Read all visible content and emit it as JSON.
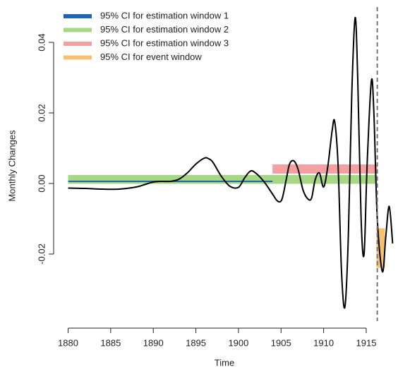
{
  "chart_data": {
    "type": "line",
    "xlabel": "Time",
    "ylabel": "Monthly Changes",
    "xlim": [
      1878.3,
      1918.4
    ],
    "ylim": [
      -0.039,
      0.05
    ],
    "xticks": [
      1880,
      1885,
      1890,
      1895,
      1900,
      1905,
      1910,
      1915
    ],
    "yticks": [
      -0.02,
      {
        "value": 0,
        "label": "0.00"
      },
      0.02,
      0.04
    ],
    "series": [
      {
        "color": "#000000",
        "x": [
          1880,
          1882,
          1884,
          1886,
          1888,
          1889,
          1890,
          1891,
          1892,
          1893,
          1894,
          1895,
          1896,
          1896.5,
          1897,
          1898,
          1899,
          1900,
          1900.7,
          1901.4,
          1902,
          1903,
          1904,
          1904.6,
          1905.1,
          1905.6,
          1906,
          1906.5,
          1907,
          1907.6,
          1908.2,
          1908.6,
          1909,
          1909.5,
          1910,
          1910.5,
          1911,
          1911.3,
          1911.7,
          1912.1,
          1912.5,
          1912.9,
          1913.3,
          1913.7,
          1914,
          1914.4,
          1914.75,
          1915.1,
          1915.6,
          1915.9,
          1916.3,
          1916.9,
          1917.3,
          1917.7,
          1918.1
        ],
        "values": [
          -0.0013,
          -0.0014,
          -0.0016,
          -0.0016,
          -0.001,
          -0.0003,
          0.0004,
          0.0006,
          0.0006,
          0.0012,
          0.003,
          0.0055,
          0.0072,
          0.007,
          0.006,
          0.002,
          -0.0008,
          -0.0011,
          0.0015,
          0.0035,
          0.003,
          0.0005,
          -0.003,
          -0.005,
          -0.0045,
          0.001,
          0.0055,
          0.0064,
          0.004,
          -0.002,
          -0.0045,
          -0.004,
          0.001,
          0.003,
          -0.001,
          0.005,
          0.015,
          0.0175,
          0.005,
          -0.025,
          -0.035,
          -0.015,
          0.025,
          0.047,
          0.03,
          -0.01,
          -0.02,
          0.005,
          0.029,
          0.02,
          -0.01,
          -0.025,
          -0.015,
          -0.0065,
          -0.017
        ]
      }
    ],
    "bands": [
      {
        "name": "95% CI for estimation window 2",
        "color": "#a6d785",
        "x": [
          1880,
          1916.3
        ],
        "low": -0.0001,
        "high": 0.0024
      },
      {
        "name": "95% CI for estimation window 1",
        "color": "#2166ac",
        "x": [
          1880,
          1904
        ],
        "low": 0.0004,
        "high": 0.0008
      },
      {
        "name": "95% CI for estimation window 3",
        "color": "#f4a0a0",
        "x": [
          1904,
          1916.3
        ],
        "low": 0.0028,
        "high": 0.0054
      },
      {
        "name": "95% CI for event window",
        "color": "#f8c171",
        "x": [
          1916.2,
          1917.2
        ],
        "low": -0.0239,
        "high": -0.0127
      }
    ],
    "legend_order": [
      1,
      0,
      2,
      3
    ],
    "vline": 1916.3,
    "vline_color": "#777777"
  }
}
